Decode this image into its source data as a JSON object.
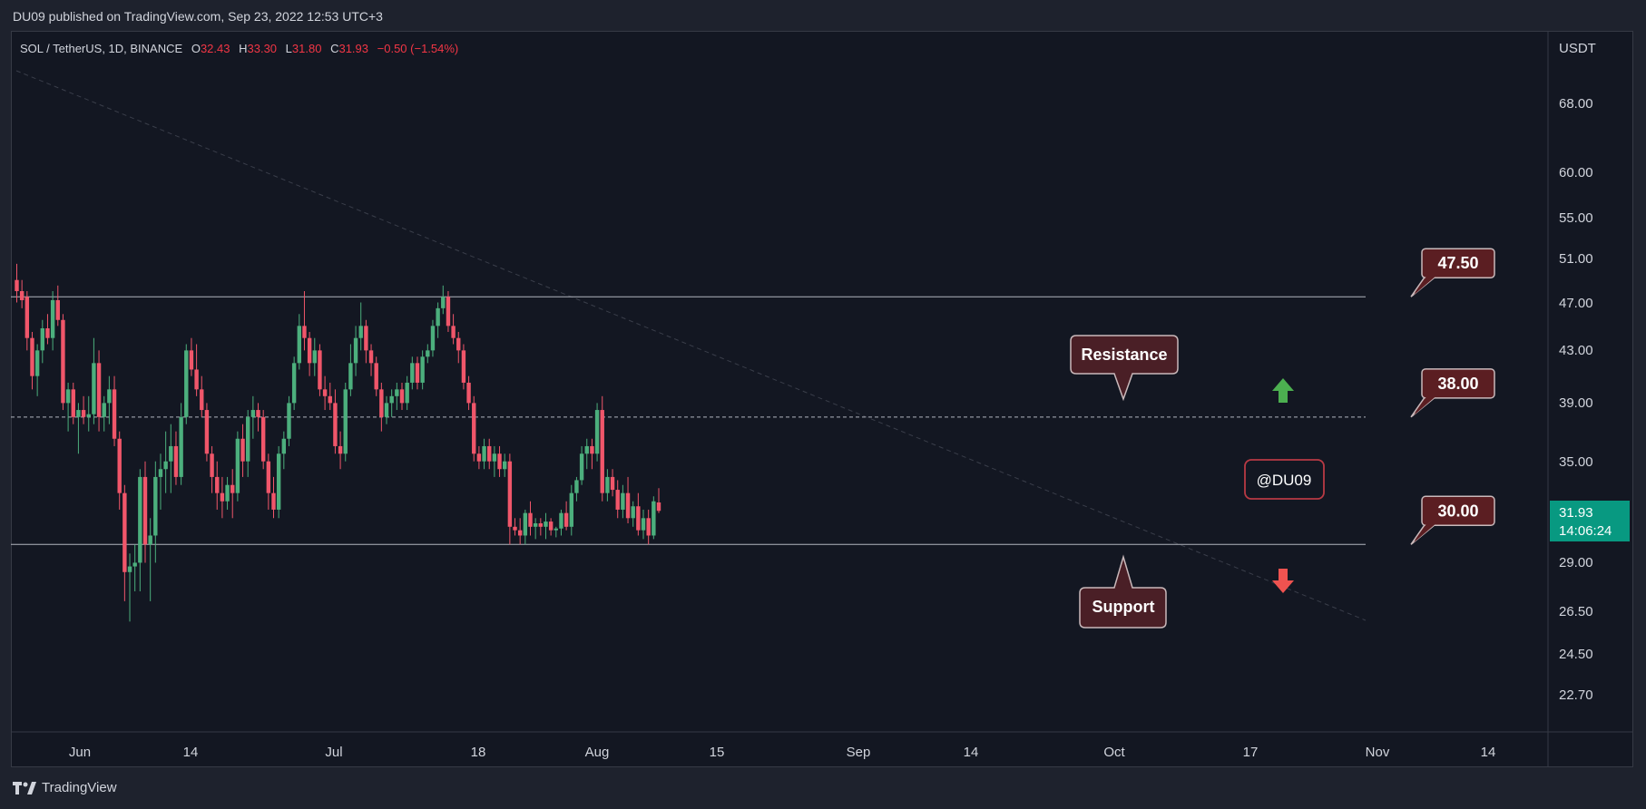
{
  "header": {
    "published": "DU09 published on TradingView.com, Sep 23, 2022 12:53 UTC+3"
  },
  "footer": {
    "brand": "TradingView",
    "logo_icon": "tradingview-logo-icon"
  },
  "chart_data": {
    "type": "candlestick",
    "symbol_line": {
      "symbol": "SOL / TetherUS, 1D, BINANCE",
      "o_label": "O",
      "o": "32.43",
      "h_label": "H",
      "h": "33.30",
      "l_label": "L",
      "l": "31.80",
      "c_label": "C",
      "c": "31.93",
      "change": "−0.50 (−1.54%)"
    },
    "currency": "USDT",
    "y_scale": "log",
    "y_range": [
      21.5,
      78
    ],
    "price_ticks": [
      "68.00",
      "60.00",
      "55.00",
      "51.00",
      "47.00",
      "43.00",
      "39.00",
      "35.00",
      "29.00",
      "26.50",
      "24.50",
      "22.70"
    ],
    "x_ticks": [
      "Jun",
      "14",
      "Jul",
      "18",
      "Aug",
      "15",
      "Sep",
      "14",
      "Oct",
      "17",
      "Nov",
      "14"
    ],
    "current_price": {
      "value": "31.93",
      "countdown": "14:06:24"
    },
    "levels": [
      {
        "value": 47.5,
        "label": "47.50",
        "style": "solid"
      },
      {
        "value": 38.0,
        "label": "38.00",
        "style": "dashed"
      },
      {
        "value": 30.0,
        "label": "30.00",
        "style": "solid"
      }
    ],
    "annotations": {
      "resistance": "Resistance",
      "support": "Support",
      "watermark": "@DU09"
    },
    "colors": {
      "up": "#26a69a",
      "down": "#ef5350",
      "up_candle": "#4caf7d",
      "down_candle": "#f0566a",
      "background": "#131722",
      "label_bg": "#5b1e22"
    },
    "candles": [
      {
        "o": 49.0,
        "h": 50.5,
        "l": 47.0,
        "c": 48.0
      },
      {
        "o": 48.0,
        "h": 49.0,
        "l": 46.5,
        "c": 47.2
      },
      {
        "o": 47.5,
        "h": 48.0,
        "l": 43.0,
        "c": 44.0
      },
      {
        "o": 44.0,
        "h": 44.5,
        "l": 40.0,
        "c": 41.0
      },
      {
        "o": 41.0,
        "h": 43.5,
        "l": 39.5,
        "c": 43.0
      },
      {
        "o": 43.0,
        "h": 45.5,
        "l": 42.0,
        "c": 44.8
      },
      {
        "o": 44.8,
        "h": 46.0,
        "l": 43.5,
        "c": 44.0
      },
      {
        "o": 44.0,
        "h": 48.0,
        "l": 43.0,
        "c": 47.2
      },
      {
        "o": 47.2,
        "h": 48.5,
        "l": 45.0,
        "c": 45.5
      },
      {
        "o": 45.5,
        "h": 46.0,
        "l": 38.5,
        "c": 39.0
      },
      {
        "o": 39.0,
        "h": 40.5,
        "l": 37.0,
        "c": 40.0
      },
      {
        "o": 40.0,
        "h": 40.5,
        "l": 37.5,
        "c": 38.0
      },
      {
        "o": 38.0,
        "h": 39.0,
        "l": 35.5,
        "c": 38.5
      },
      {
        "o": 38.5,
        "h": 39.5,
        "l": 37.5,
        "c": 38.0
      },
      {
        "o": 38.0,
        "h": 39.5,
        "l": 37.0,
        "c": 38.2
      },
      {
        "o": 38.2,
        "h": 44.0,
        "l": 37.5,
        "c": 42.0
      },
      {
        "o": 42.0,
        "h": 43.0,
        "l": 37.0,
        "c": 38.0
      },
      {
        "o": 38.0,
        "h": 39.5,
        "l": 37.0,
        "c": 39.0
      },
      {
        "o": 39.0,
        "h": 41.0,
        "l": 37.5,
        "c": 40.0
      },
      {
        "o": 40.0,
        "h": 41.0,
        "l": 36.0,
        "c": 36.5
      },
      {
        "o": 36.5,
        "h": 37.0,
        "l": 32.0,
        "c": 33.0
      },
      {
        "o": 33.0,
        "h": 33.5,
        "l": 27.0,
        "c": 28.5
      },
      {
        "o": 28.5,
        "h": 29.5,
        "l": 26.0,
        "c": 28.8
      },
      {
        "o": 28.8,
        "h": 30.0,
        "l": 27.5,
        "c": 29.0
      },
      {
        "o": 29.0,
        "h": 34.5,
        "l": 27.5,
        "c": 34.0
      },
      {
        "o": 34.0,
        "h": 35.0,
        "l": 29.0,
        "c": 30.0
      },
      {
        "o": 30.0,
        "h": 31.5,
        "l": 27.0,
        "c": 30.5
      },
      {
        "o": 30.5,
        "h": 35.0,
        "l": 29.0,
        "c": 34.0
      },
      {
        "o": 34.0,
        "h": 35.5,
        "l": 32.0,
        "c": 34.5
      },
      {
        "o": 34.5,
        "h": 37.0,
        "l": 33.0,
        "c": 35.0
      },
      {
        "o": 35.0,
        "h": 37.5,
        "l": 33.0,
        "c": 36.0
      },
      {
        "o": 36.0,
        "h": 37.0,
        "l": 33.5,
        "c": 34.0
      },
      {
        "o": 34.0,
        "h": 39.0,
        "l": 33.5,
        "c": 38.0
      },
      {
        "o": 38.0,
        "h": 43.5,
        "l": 37.5,
        "c": 43.0
      },
      {
        "o": 43.0,
        "h": 44.0,
        "l": 41.0,
        "c": 41.5
      },
      {
        "o": 41.5,
        "h": 43.5,
        "l": 39.5,
        "c": 40.0
      },
      {
        "o": 40.0,
        "h": 41.0,
        "l": 38.0,
        "c": 38.5
      },
      {
        "o": 38.5,
        "h": 39.0,
        "l": 35.0,
        "c": 35.5
      },
      {
        "o": 35.5,
        "h": 36.0,
        "l": 33.0,
        "c": 34.0
      },
      {
        "o": 34.0,
        "h": 35.0,
        "l": 32.0,
        "c": 33.0
      },
      {
        "o": 33.0,
        "h": 34.0,
        "l": 31.5,
        "c": 32.5
      },
      {
        "o": 32.5,
        "h": 34.0,
        "l": 32.0,
        "c": 33.5
      },
      {
        "o": 33.5,
        "h": 34.5,
        "l": 31.5,
        "c": 33.0
      },
      {
        "o": 33.0,
        "h": 37.0,
        "l": 32.5,
        "c": 36.5
      },
      {
        "o": 36.5,
        "h": 37.5,
        "l": 34.0,
        "c": 35.0
      },
      {
        "o": 35.0,
        "h": 38.5,
        "l": 34.0,
        "c": 38.0
      },
      {
        "o": 38.0,
        "h": 39.5,
        "l": 36.5,
        "c": 38.5
      },
      {
        "o": 38.5,
        "h": 39.0,
        "l": 37.0,
        "c": 38.0
      },
      {
        "o": 38.0,
        "h": 38.5,
        "l": 34.5,
        "c": 35.0
      },
      {
        "o": 35.0,
        "h": 35.5,
        "l": 32.0,
        "c": 33.0
      },
      {
        "o": 33.0,
        "h": 34.0,
        "l": 31.5,
        "c": 32.0
      },
      {
        "o": 32.0,
        "h": 36.0,
        "l": 31.5,
        "c": 35.5
      },
      {
        "o": 35.5,
        "h": 37.0,
        "l": 34.5,
        "c": 36.5
      },
      {
        "o": 36.5,
        "h": 39.5,
        "l": 36.0,
        "c": 39.0
      },
      {
        "o": 39.0,
        "h": 42.5,
        "l": 38.5,
        "c": 42.0
      },
      {
        "o": 42.0,
        "h": 46.0,
        "l": 41.5,
        "c": 45.0
      },
      {
        "o": 45.0,
        "h": 48.0,
        "l": 43.0,
        "c": 44.0
      },
      {
        "o": 44.0,
        "h": 44.5,
        "l": 41.0,
        "c": 42.0
      },
      {
        "o": 42.0,
        "h": 44.0,
        "l": 41.0,
        "c": 43.0
      },
      {
        "o": 43.0,
        "h": 43.5,
        "l": 39.5,
        "c": 40.0
      },
      {
        "o": 40.0,
        "h": 41.0,
        "l": 38.5,
        "c": 39.5
      },
      {
        "o": 39.5,
        "h": 40.5,
        "l": 38.5,
        "c": 39.0
      },
      {
        "o": 39.0,
        "h": 40.0,
        "l": 35.5,
        "c": 36.0
      },
      {
        "o": 36.0,
        "h": 37.0,
        "l": 34.5,
        "c": 35.5
      },
      {
        "o": 35.5,
        "h": 40.5,
        "l": 35.0,
        "c": 40.0
      },
      {
        "o": 40.0,
        "h": 43.5,
        "l": 39.5,
        "c": 42.0
      },
      {
        "o": 42.0,
        "h": 45.0,
        "l": 41.0,
        "c": 44.0
      },
      {
        "o": 44.0,
        "h": 47.0,
        "l": 43.0,
        "c": 45.0
      },
      {
        "o": 45.0,
        "h": 45.5,
        "l": 42.0,
        "c": 43.0
      },
      {
        "o": 43.0,
        "h": 43.5,
        "l": 41.0,
        "c": 42.0
      },
      {
        "o": 42.0,
        "h": 42.5,
        "l": 39.5,
        "c": 40.0
      },
      {
        "o": 40.0,
        "h": 40.5,
        "l": 37.0,
        "c": 38.0
      },
      {
        "o": 38.0,
        "h": 39.5,
        "l": 37.5,
        "c": 39.0
      },
      {
        "o": 39.0,
        "h": 40.0,
        "l": 38.0,
        "c": 39.5
      },
      {
        "o": 39.5,
        "h": 40.5,
        "l": 38.5,
        "c": 40.0
      },
      {
        "o": 40.0,
        "h": 40.5,
        "l": 38.5,
        "c": 39.0
      },
      {
        "o": 39.0,
        "h": 41.0,
        "l": 38.5,
        "c": 40.5
      },
      {
        "o": 40.5,
        "h": 42.5,
        "l": 40.0,
        "c": 42.0
      },
      {
        "o": 42.0,
        "h": 42.5,
        "l": 40.0,
        "c": 40.5
      },
      {
        "o": 40.5,
        "h": 43.0,
        "l": 40.0,
        "c": 42.5
      },
      {
        "o": 42.5,
        "h": 43.5,
        "l": 42.0,
        "c": 43.0
      },
      {
        "o": 43.0,
        "h": 45.5,
        "l": 42.5,
        "c": 45.0
      },
      {
        "o": 45.0,
        "h": 47.0,
        "l": 44.0,
        "c": 46.5
      },
      {
        "o": 46.5,
        "h": 48.5,
        "l": 46.0,
        "c": 47.5
      },
      {
        "o": 47.5,
        "h": 48.0,
        "l": 44.5,
        "c": 45.0
      },
      {
        "o": 45.0,
        "h": 46.0,
        "l": 43.5,
        "c": 44.0
      },
      {
        "o": 44.0,
        "h": 44.5,
        "l": 42.0,
        "c": 43.0
      },
      {
        "o": 43.0,
        "h": 43.5,
        "l": 40.0,
        "c": 40.5
      },
      {
        "o": 40.5,
        "h": 41.0,
        "l": 38.5,
        "c": 39.0
      },
      {
        "o": 39.0,
        "h": 39.5,
        "l": 35.0,
        "c": 35.5
      },
      {
        "o": 35.5,
        "h": 36.0,
        "l": 34.5,
        "c": 35.0
      },
      {
        "o": 35.0,
        "h": 36.5,
        "l": 34.5,
        "c": 36.0
      },
      {
        "o": 36.0,
        "h": 36.5,
        "l": 34.5,
        "c": 35.0
      },
      {
        "o": 35.0,
        "h": 36.0,
        "l": 34.0,
        "c": 35.5
      },
      {
        "o": 35.5,
        "h": 36.0,
        "l": 34.0,
        "c": 34.5
      },
      {
        "o": 34.5,
        "h": 35.5,
        "l": 34.0,
        "c": 35.0
      },
      {
        "o": 35.0,
        "h": 35.5,
        "l": 30.0,
        "c": 31.0
      },
      {
        "o": 31.0,
        "h": 31.5,
        "l": 30.5,
        "c": 30.8
      },
      {
        "o": 30.8,
        "h": 31.5,
        "l": 30.0,
        "c": 30.5
      },
      {
        "o": 30.5,
        "h": 32.0,
        "l": 30.0,
        "c": 31.8
      },
      {
        "o": 31.8,
        "h": 32.5,
        "l": 30.5,
        "c": 31.0
      },
      {
        "o": 31.0,
        "h": 31.5,
        "l": 30.3,
        "c": 31.2
      },
      {
        "o": 31.2,
        "h": 31.5,
        "l": 30.5,
        "c": 31.0
      },
      {
        "o": 31.0,
        "h": 31.8,
        "l": 30.3,
        "c": 31.3
      },
      {
        "o": 31.3,
        "h": 31.5,
        "l": 30.5,
        "c": 30.8
      },
      {
        "o": 30.8,
        "h": 31.0,
        "l": 30.4,
        "c": 30.9
      },
      {
        "o": 30.9,
        "h": 32.0,
        "l": 30.5,
        "c": 31.8
      },
      {
        "o": 31.8,
        "h": 32.5,
        "l": 30.8,
        "c": 31.0
      },
      {
        "o": 31.0,
        "h": 33.5,
        "l": 30.5,
        "c": 33.0
      },
      {
        "o": 33.0,
        "h": 34.0,
        "l": 32.5,
        "c": 33.8
      },
      {
        "o": 33.8,
        "h": 36.0,
        "l": 33.5,
        "c": 35.5
      },
      {
        "o": 35.5,
        "h": 36.5,
        "l": 34.5,
        "c": 36.0
      },
      {
        "o": 36.0,
        "h": 36.5,
        "l": 34.5,
        "c": 35.5
      },
      {
        "o": 35.5,
        "h": 39.0,
        "l": 35.0,
        "c": 38.5
      },
      {
        "o": 38.5,
        "h": 39.5,
        "l": 32.5,
        "c": 33.0
      },
      {
        "o": 33.0,
        "h": 34.5,
        "l": 32.5,
        "c": 34.0
      },
      {
        "o": 34.0,
        "h": 34.5,
        "l": 32.8,
        "c": 33.2
      },
      {
        "o": 33.2,
        "h": 33.8,
        "l": 31.5,
        "c": 32.0
      },
      {
        "o": 32.0,
        "h": 33.5,
        "l": 31.5,
        "c": 33.0
      },
      {
        "o": 33.0,
        "h": 34.0,
        "l": 31.2,
        "c": 31.5
      },
      {
        "o": 31.5,
        "h": 32.5,
        "l": 31.0,
        "c": 32.2
      },
      {
        "o": 32.2,
        "h": 33.0,
        "l": 30.5,
        "c": 30.8
      },
      {
        "o": 30.8,
        "h": 32.0,
        "l": 30.3,
        "c": 31.5
      },
      {
        "o": 31.5,
        "h": 32.0,
        "l": 30.0,
        "c": 30.5
      },
      {
        "o": 30.5,
        "h": 32.8,
        "l": 30.3,
        "c": 32.5
      },
      {
        "o": 32.43,
        "h": 33.3,
        "l": 31.8,
        "c": 31.93
      }
    ],
    "x_map": {
      "first_candle_x": 18.5,
      "candle_spacing": 5.66
    }
  }
}
